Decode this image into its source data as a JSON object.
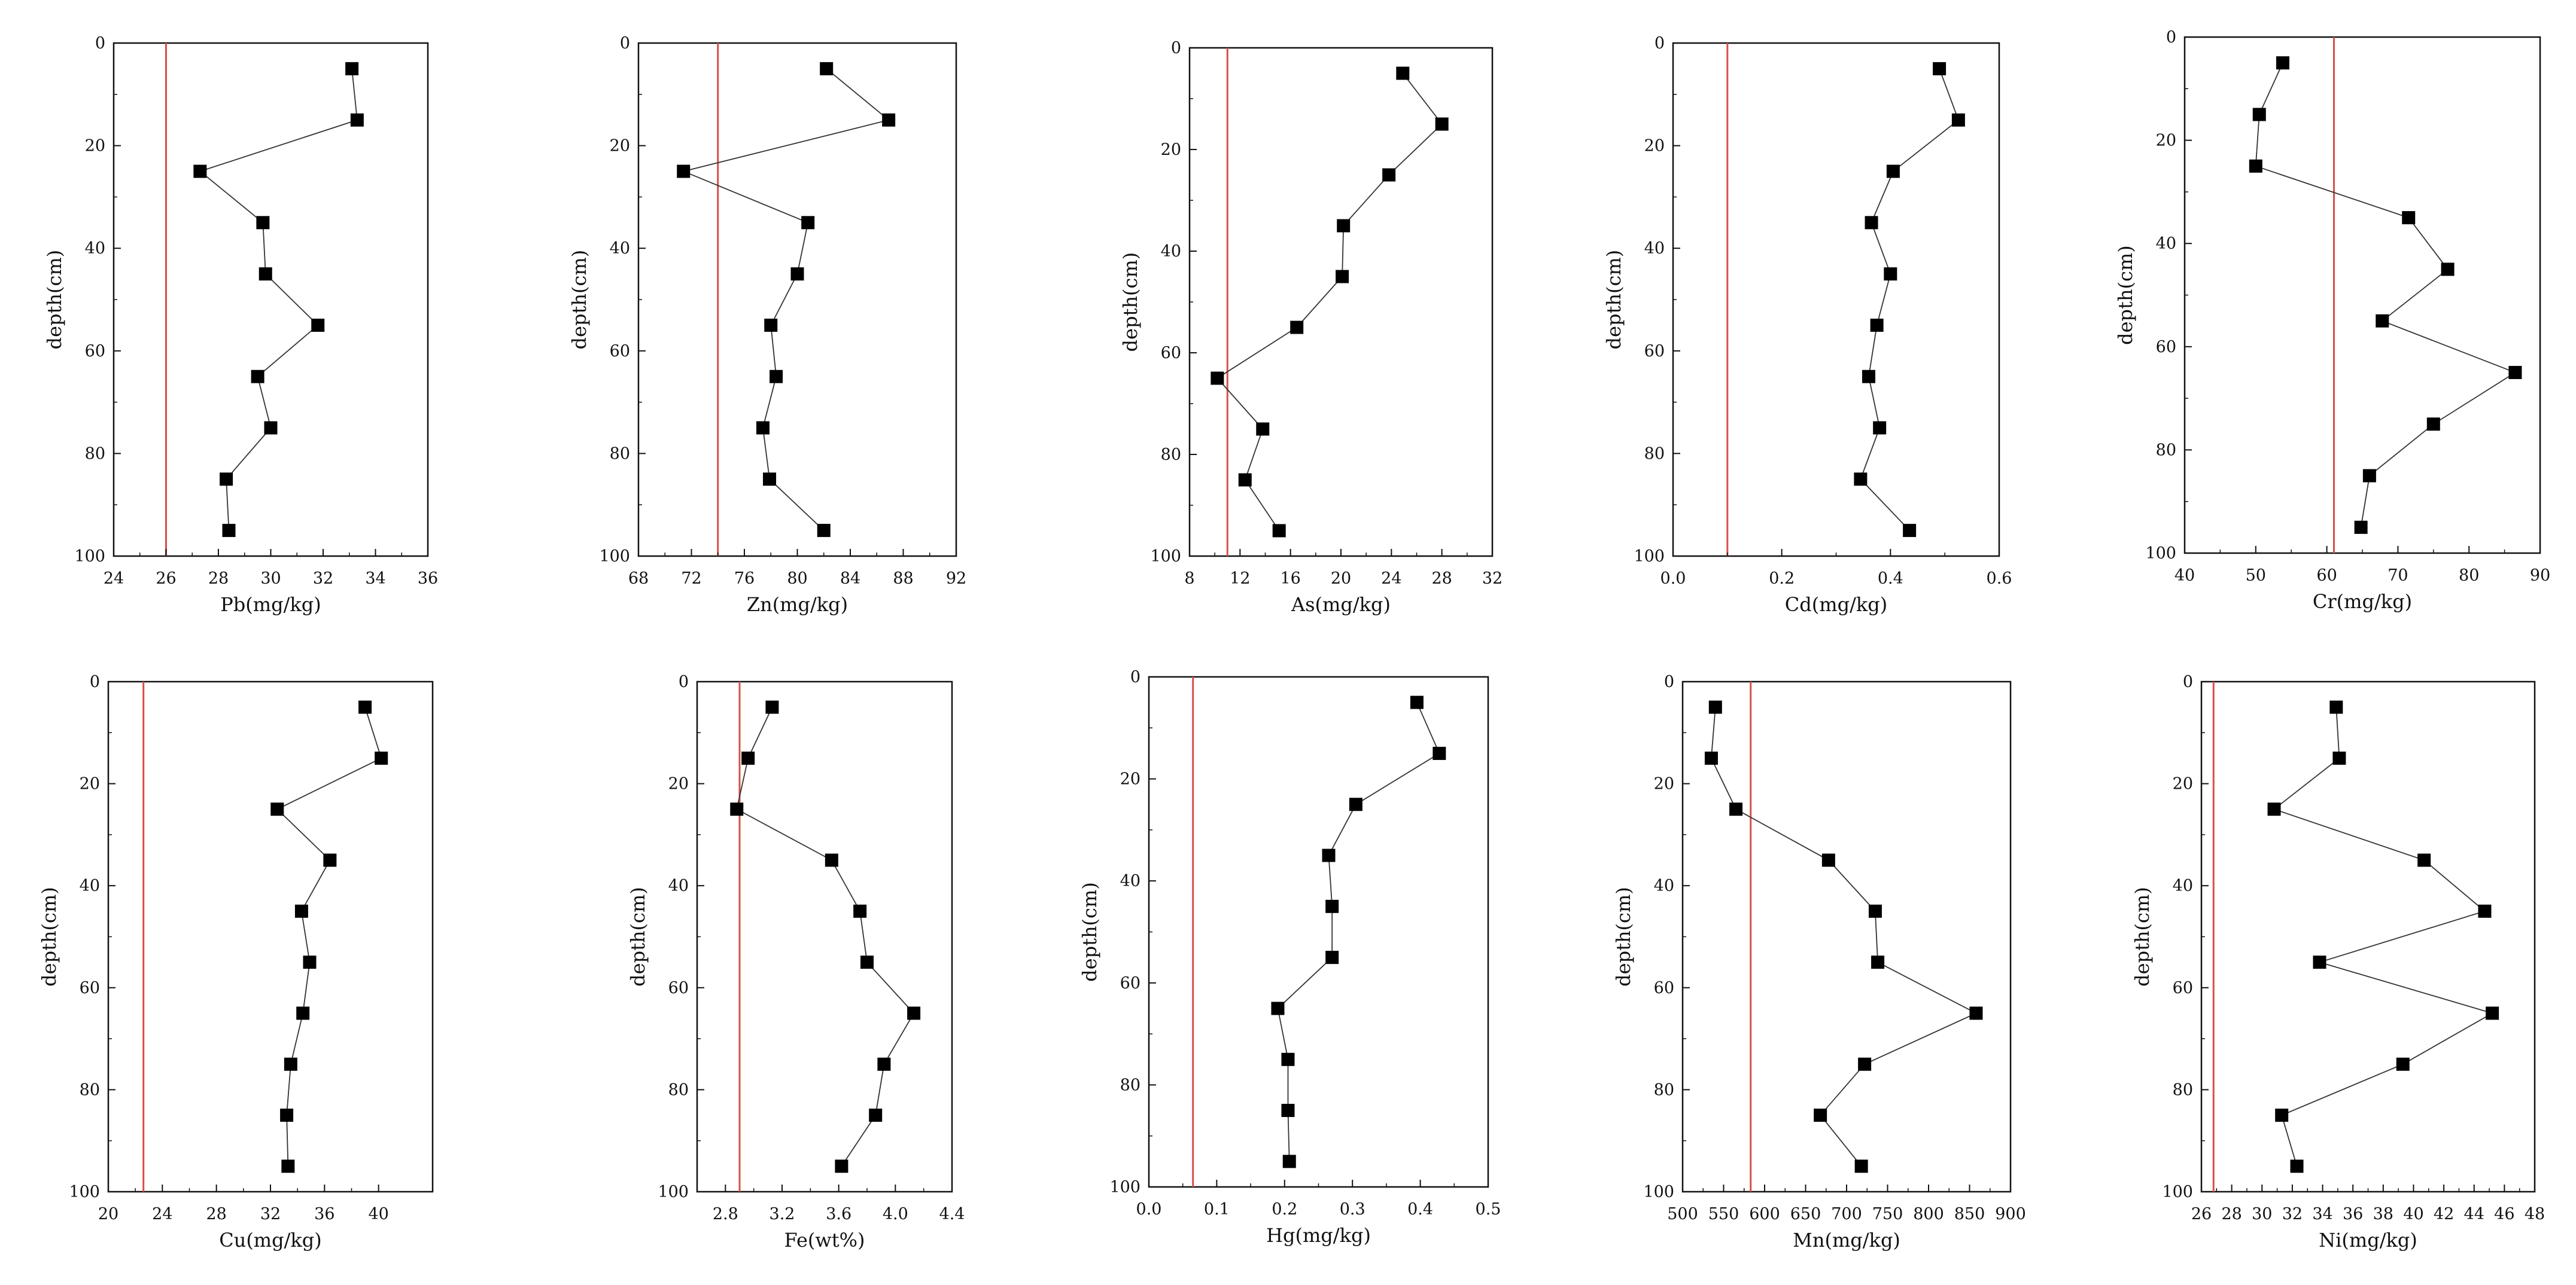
{
  "chart_data": [
    {
      "type": "line",
      "title": "",
      "xlabel": "Pb(mg/kg)",
      "ylabel": "depth(cm)",
      "xlim": [
        24,
        36
      ],
      "xticks": [
        24,
        26,
        28,
        30,
        32,
        34,
        36
      ],
      "xtick_labels": [
        "24",
        "26",
        "28",
        "30",
        "32",
        "34",
        "36"
      ],
      "ylim": [
        0,
        100
      ],
      "yticks": [
        0,
        20,
        40,
        60,
        80,
        100
      ],
      "ytick_labels": [
        "0",
        "20",
        "40",
        "60",
        "80",
        "100"
      ],
      "y_inverted": true,
      "reference_line": 26,
      "series": [
        {
          "name": "Pb",
          "depth": [
            5,
            15,
            25,
            35,
            45,
            55,
            65,
            75,
            85,
            95
          ],
          "values": [
            33.1,
            33.3,
            27.3,
            29.7,
            29.8,
            31.8,
            29.5,
            30.0,
            28.3,
            28.4
          ]
        }
      ]
    },
    {
      "type": "line",
      "title": "",
      "xlabel": "Zn(mg/kg)",
      "ylabel": "depth(cm)",
      "xlim": [
        68,
        92
      ],
      "xticks": [
        68,
        72,
        76,
        80,
        84,
        88,
        92
      ],
      "xtick_labels": [
        "68",
        "72",
        "76",
        "80",
        "84",
        "88",
        "92"
      ],
      "ylim": [
        0,
        100
      ],
      "yticks": [
        0,
        20,
        40,
        60,
        80,
        100
      ],
      "ytick_labels": [
        "0",
        "20",
        "40",
        "60",
        "80",
        "100"
      ],
      "y_inverted": true,
      "reference_line": 74,
      "series": [
        {
          "name": "Zn",
          "depth": [
            5,
            15,
            25,
            35,
            45,
            55,
            65,
            75,
            85,
            95
          ],
          "values": [
            82.2,
            86.9,
            71.4,
            80.8,
            80.0,
            78.0,
            78.4,
            77.4,
            77.9,
            82.0
          ]
        }
      ]
    },
    {
      "type": "line",
      "title": "",
      "xlabel": "As(mg/kg)",
      "ylabel": "depth(cm)",
      "xlim": [
        8,
        32
      ],
      "xticks": [
        8,
        12,
        16,
        20,
        24,
        28,
        32
      ],
      "xtick_labels": [
        "8",
        "12",
        "16",
        "20",
        "24",
        "28",
        "32"
      ],
      "ylim": [
        0,
        100
      ],
      "yticks": [
        0,
        20,
        40,
        60,
        80,
        100
      ],
      "ytick_labels": [
        "0",
        "20",
        "40",
        "60",
        "80",
        "100"
      ],
      "y_inverted": true,
      "reference_line": 11,
      "series": [
        {
          "name": "As",
          "depth": [
            5,
            15,
            25,
            35,
            45,
            55,
            65,
            75,
            85,
            95
          ],
          "values": [
            24.9,
            28.0,
            23.8,
            20.2,
            20.1,
            16.5,
            10.2,
            13.8,
            12.4,
            15.1
          ]
        }
      ]
    },
    {
      "type": "line",
      "title": "",
      "xlabel": "Cd(mg/kg)",
      "ylabel": "depth(cm)",
      "xlim": [
        0,
        0.6
      ],
      "xticks": [
        0,
        0.2,
        0.4,
        0.6
      ],
      "xtick_labels": [
        "0.0",
        "0.2",
        "0.4",
        "0.6"
      ],
      "ylim": [
        0,
        100
      ],
      "yticks": [
        0,
        20,
        40,
        60,
        80,
        100
      ],
      "ytick_labels": [
        "0",
        "20",
        "40",
        "60",
        "80",
        "100"
      ],
      "y_inverted": true,
      "reference_line": 0.1,
      "series": [
        {
          "name": "Cd",
          "depth": [
            5,
            15,
            25,
            35,
            45,
            55,
            65,
            75,
            85,
            95
          ],
          "values": [
            0.49,
            0.525,
            0.405,
            0.365,
            0.4,
            0.375,
            0.36,
            0.38,
            0.345,
            0.435
          ]
        }
      ]
    },
    {
      "type": "line",
      "title": "",
      "xlabel": "Cr(mg/kg)",
      "ylabel": "depth(cm)",
      "xlim": [
        40,
        90
      ],
      "xticks": [
        40,
        50,
        60,
        70,
        80,
        90
      ],
      "xtick_labels": [
        "40",
        "50",
        "60",
        "70",
        "80",
        "90"
      ],
      "ylim": [
        0,
        100
      ],
      "yticks": [
        0,
        20,
        40,
        60,
        80,
        100
      ],
      "ytick_labels": [
        "0",
        "20",
        "40",
        "60",
        "80",
        "100"
      ],
      "y_inverted": true,
      "reference_line": 61,
      "series": [
        {
          "name": "Cr",
          "depth": [
            5,
            15,
            25,
            35,
            45,
            55,
            65,
            75,
            85,
            95
          ],
          "values": [
            53.8,
            50.5,
            50.0,
            71.5,
            77.0,
            67.8,
            86.5,
            75.0,
            66.0,
            64.8
          ]
        }
      ]
    },
    {
      "type": "line",
      "title": "",
      "xlabel": "Cu(mg/kg)",
      "ylabel": "depth(cm)",
      "xlim": [
        20,
        44
      ],
      "xticks": [
        20,
        24,
        28,
        32,
        36,
        40
      ],
      "xtick_labels": [
        "20",
        "24",
        "28",
        "32",
        "36",
        "40"
      ],
      "ylim": [
        0,
        100
      ],
      "yticks": [
        0,
        20,
        40,
        60,
        80,
        100
      ],
      "ytick_labels": [
        "0",
        "20",
        "40",
        "60",
        "80",
        "100"
      ],
      "y_inverted": true,
      "reference_line": 22.6,
      "series": [
        {
          "name": "Cu",
          "depth": [
            5,
            15,
            25,
            35,
            45,
            55,
            65,
            75,
            85,
            95
          ],
          "values": [
            39.0,
            40.2,
            32.5,
            36.4,
            34.3,
            34.9,
            34.4,
            33.5,
            33.2,
            33.3
          ]
        }
      ]
    },
    {
      "type": "line",
      "title": "",
      "xlabel": "Fe(wt%)",
      "ylabel": "depth(cm)",
      "xlim": [
        2.6,
        4.4
      ],
      "xticks": [
        2.8,
        3.2,
        3.6,
        4.0,
        4.4
      ],
      "xtick_labels": [
        "2.8",
        "3.2",
        "3.6",
        "4.0",
        "4.4"
      ],
      "ylim": [
        0,
        100
      ],
      "yticks": [
        0,
        20,
        40,
        60,
        80,
        100
      ],
      "ytick_labels": [
        "0",
        "20",
        "40",
        "60",
        "80",
        "100"
      ],
      "y_inverted": true,
      "reference_line": 2.9,
      "series": [
        {
          "name": "Fe",
          "depth": [
            5,
            15,
            25,
            35,
            45,
            55,
            65,
            75,
            85,
            95
          ],
          "values": [
            3.13,
            2.96,
            2.88,
            3.55,
            3.75,
            3.8,
            4.13,
            3.92,
            3.86,
            3.62
          ]
        }
      ]
    },
    {
      "type": "line",
      "title": "",
      "xlabel": "Hg(mg/kg)",
      "ylabel": "depth(cm)",
      "xlim": [
        0,
        0.5
      ],
      "xticks": [
        0,
        0.1,
        0.2,
        0.3,
        0.4,
        0.5
      ],
      "xtick_labels": [
        "0.0",
        "0.1",
        "0.2",
        "0.3",
        "0.4",
        "0.5"
      ],
      "ylim": [
        0,
        100
      ],
      "yticks": [
        0,
        20,
        40,
        60,
        80,
        100
      ],
      "ytick_labels": [
        "0",
        "20",
        "40",
        "60",
        "80",
        "100"
      ],
      "y_inverted": true,
      "reference_line": 0.065,
      "series": [
        {
          "name": "Hg",
          "depth": [
            5,
            15,
            25,
            35,
            45,
            55,
            65,
            75,
            85,
            95
          ],
          "values": [
            0.395,
            0.428,
            0.305,
            0.265,
            0.27,
            0.27,
            0.19,
            0.205,
            0.205,
            0.207
          ]
        }
      ]
    },
    {
      "type": "line",
      "title": "",
      "xlabel": "Mn(mg/kg)",
      "ylabel": "depth(cm)",
      "xlim": [
        500,
        900
      ],
      "xticks": [
        500,
        550,
        600,
        650,
        700,
        750,
        800,
        850,
        900
      ],
      "xtick_labels": [
        "500",
        "550",
        "600",
        "650",
        "700",
        "750",
        "800",
        "850",
        "900"
      ],
      "ylim": [
        0,
        100
      ],
      "yticks": [
        0,
        20,
        40,
        60,
        80,
        100
      ],
      "ytick_labels": [
        "0",
        "20",
        "40",
        "60",
        "80",
        "100"
      ],
      "y_inverted": true,
      "reference_line": 583,
      "series": [
        {
          "name": "Mn",
          "depth": [
            5,
            15,
            25,
            35,
            45,
            55,
            65,
            75,
            85,
            95
          ],
          "values": [
            540,
            535,
            565,
            678,
            735,
            738,
            858,
            722,
            668,
            718
          ]
        }
      ]
    },
    {
      "type": "line",
      "title": "",
      "xlabel": "Ni(mg/kg)",
      "ylabel": "depth(cm)",
      "xlim": [
        26,
        48
      ],
      "xticks": [
        26,
        28,
        30,
        32,
        34,
        36,
        38,
        40,
        42,
        44,
        46,
        48
      ],
      "xtick_labels": [
        "26",
        "28",
        "30",
        "32",
        "34",
        "36",
        "38",
        "40",
        "42",
        "44",
        "46",
        "48"
      ],
      "ylim": [
        0,
        100
      ],
      "yticks": [
        0,
        20,
        40,
        60,
        80,
        100
      ],
      "ytick_labels": [
        "0",
        "20",
        "40",
        "60",
        "80",
        "100"
      ],
      "y_inverted": true,
      "reference_line": 26.8,
      "series": [
        {
          "name": "Ni",
          "depth": [
            5,
            15,
            25,
            35,
            45,
            55,
            65,
            75,
            85,
            95
          ],
          "values": [
            34.9,
            35.1,
            30.8,
            40.7,
            44.7,
            33.8,
            45.2,
            39.3,
            31.3,
            32.3
          ]
        }
      ]
    }
  ]
}
